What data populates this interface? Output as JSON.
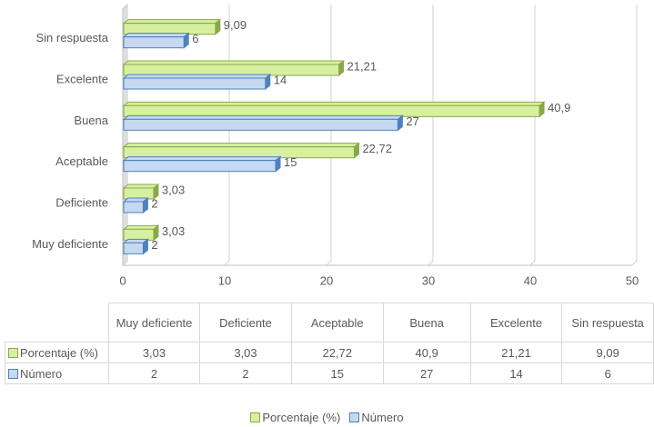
{
  "chart_data": {
    "type": "bar",
    "orientation": "horizontal",
    "categories": [
      "Muy deficiente",
      "Deficiente",
      "Aceptable",
      "Buena",
      "Excelente",
      "Sin respuesta"
    ],
    "series": [
      {
        "name": "Porcentaje (%)",
        "color": "#d7f0a0",
        "edge": "#8aa84a",
        "values": [
          3.03,
          3.03,
          22.72,
          40.9,
          21.21,
          9.09
        ],
        "value_labels": [
          "3,03",
          "3,03",
          "22,72",
          "40,9",
          "21,21",
          "9,09"
        ]
      },
      {
        "name": "Número",
        "color": "#c6d9f1",
        "edge": "#4f81bd",
        "values": [
          2,
          2,
          15,
          27,
          14,
          6
        ]
      }
    ],
    "xlim": [
      0,
      50
    ],
    "xticks": [
      0,
      10,
      20,
      30,
      40,
      50
    ],
    "grid": true,
    "legend": "bottom",
    "data_table": true
  }
}
